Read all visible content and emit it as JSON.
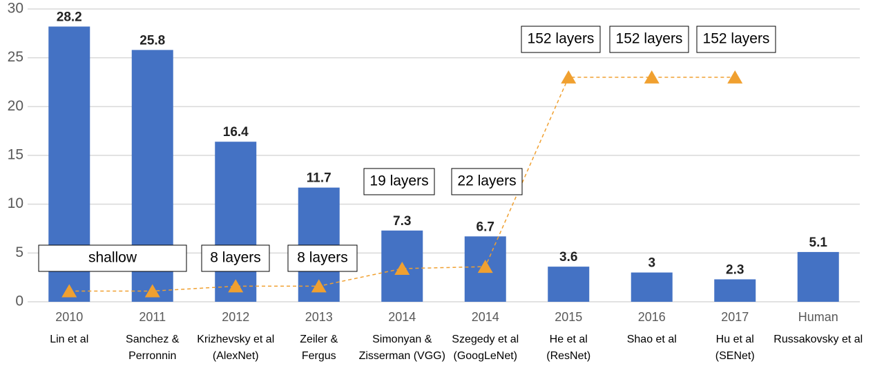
{
  "chart_data": {
    "type": "bar",
    "categories": [
      "2010",
      "2011",
      "2012",
      "2013",
      "2014",
      "2014",
      "2015",
      "2016",
      "2017",
      "Human"
    ],
    "authors": [
      [
        "Lin et al"
      ],
      [
        "Sanchez &",
        "Perronnin"
      ],
      [
        "Krizhevsky et al",
        "(AlexNet)"
      ],
      [
        "Zeiler &",
        "Fergus"
      ],
      [
        "Simonyan &",
        "Zisserman (VGG)"
      ],
      [
        "Szegedy et al",
        "(GoogLeNet)"
      ],
      [
        "He et al",
        "(ResNet)"
      ],
      [
        "Shao et al"
      ],
      [
        "Hu et al",
        "(SENet)"
      ],
      [
        "Russakovsky et al"
      ]
    ],
    "values": [
      28.2,
      25.8,
      16.4,
      11.7,
      7.3,
      6.7,
      3.6,
      3,
      2.3,
      5.1
    ],
    "color": "#4472c4",
    "markers": {
      "color": "#f0a030",
      "values": [
        1.1,
        1.1,
        1.6,
        1.6,
        3.4,
        3.6,
        23,
        23,
        23,
        null
      ]
    },
    "annotations": [
      "shallow",
      "8 layers",
      "8 layers",
      "19 layers",
      "22 layers",
      "152 layers",
      "152 layers",
      "152 layers"
    ],
    "ylim": [
      0,
      30
    ],
    "yticks": [
      0,
      5,
      10,
      15,
      20,
      25,
      30
    ],
    "grid": true
  }
}
